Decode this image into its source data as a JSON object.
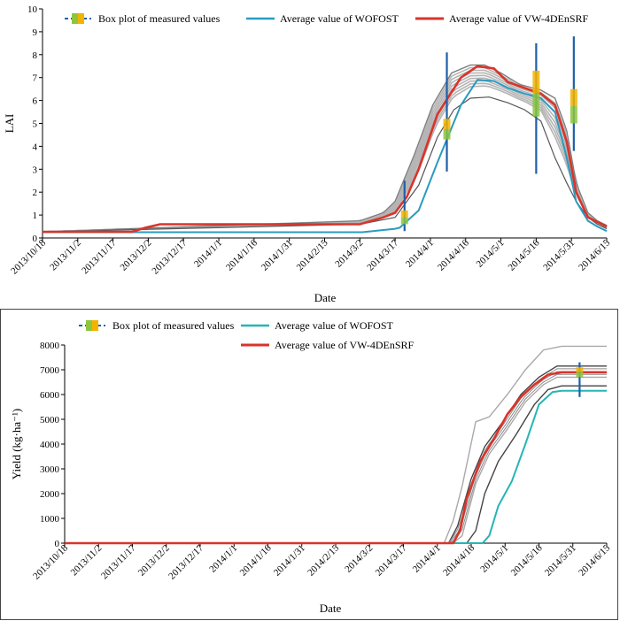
{
  "chart_data": [
    {
      "type": "line",
      "title": "",
      "xlabel": "Date",
      "ylabel": "LAI",
      "ylim": [
        0,
        10
      ],
      "yticks": [
        0,
        1,
        2,
        3,
        4,
        5,
        6,
        7,
        8,
        9,
        10
      ],
      "categories": [
        "2013/10/18",
        "2013/11/2",
        "2013/11/17",
        "2013/12/2",
        "2013/12/17",
        "2014/1/1",
        "2014/1/16",
        "2014/1/31",
        "2014/2/15",
        "2014/3/2",
        "2014/3/17",
        "2014/4/1",
        "2014/4/16",
        "2014/5/1",
        "2014/5/16",
        "2014/5/31",
        "2014/6/15"
      ],
      "legend": [
        "Box plot of measured values",
        "Average value of WOFOST",
        "Average value of VW-4DEnSRF"
      ],
      "colors": {
        "wofost": "#2a9bbf",
        "vw": "#d9342b",
        "ensemble": "#b4b4b4",
        "ensembleDark": "#555555",
        "whisker": "#1f5fa8",
        "boxLow": "#8cc63f",
        "boxHigh": "#f2b400"
      },
      "series": [
        {
          "name": "Average value of WOFOST",
          "x": [
            0,
            30,
            60,
            90,
            136,
            150,
            152,
            160,
            168,
            178,
            185,
            192,
            198,
            205,
            212,
            218,
            223,
            227,
            232,
            236,
            240
          ],
          "y": [
            0.25,
            0.25,
            0.25,
            0.25,
            0.25,
            0.4,
            0.45,
            1.2,
            3.3,
            5.8,
            6.9,
            6.85,
            6.55,
            6.3,
            6.1,
            5.5,
            3.5,
            1.6,
            0.75,
            0.5,
            0.3
          ]
        },
        {
          "name": "Average value of VW-4DEnSRF",
          "x": [
            0,
            30,
            38,
            44,
            50,
            60,
            90,
            120,
            135,
            145,
            150,
            155,
            160,
            168,
            178,
            185,
            192,
            198,
            205,
            212,
            218,
            223,
            227,
            232,
            236,
            240
          ],
          "y": [
            0.27,
            0.27,
            0.27,
            0.45,
            0.6,
            0.6,
            0.6,
            0.6,
            0.6,
            0.9,
            1.1,
            1.8,
            3.0,
            5.4,
            7.0,
            7.5,
            7.4,
            6.8,
            6.55,
            6.3,
            5.8,
            4.2,
            2.0,
            0.9,
            0.7,
            0.5
          ]
        },
        {
          "name": "ensemble-low",
          "x": [
            0,
            135,
            150,
            160,
            168,
            175,
            182,
            190,
            198,
            205,
            212,
            218,
            223,
            227,
            232,
            236,
            240
          ],
          "y": [
            0.27,
            0.6,
            0.9,
            2.3,
            4.4,
            5.6,
            6.1,
            6.15,
            5.9,
            5.6,
            5.1,
            3.5,
            2.4,
            1.6,
            0.9,
            0.6,
            0.4
          ]
        },
        {
          "name": "ensemble-high",
          "x": [
            0,
            135,
            145,
            150,
            158,
            166,
            174,
            182,
            188,
            195,
            203,
            212,
            218,
            223,
            227,
            232,
            236,
            240
          ],
          "y": [
            0.27,
            0.75,
            1.1,
            1.6,
            3.6,
            5.8,
            7.2,
            7.55,
            7.55,
            7.2,
            6.7,
            6.45,
            6.1,
            4.7,
            2.4,
            1.1,
            0.75,
            0.55
          ]
        }
      ],
      "boxes": [
        {
          "x": 154,
          "min": 0.3,
          "max": 2.5,
          "q1": 0.6,
          "q3": 1.2
        },
        {
          "x": 172,
          "min": 2.9,
          "max": 8.1,
          "q1": 4.3,
          "q3": 5.2
        },
        {
          "x": 210,
          "min": 2.8,
          "max": 8.5,
          "q1": 5.3,
          "q3": 7.3
        },
        {
          "x": 226,
          "min": 3.8,
          "max": 8.8,
          "q1": 5.0,
          "q3": 6.5
        }
      ]
    },
    {
      "type": "line",
      "title": "",
      "xlabel": "Date",
      "ylabel": "Yield (kg·ha⁻¹)",
      "ylim": [
        0,
        8000
      ],
      "yticks": [
        0,
        1000,
        2000,
        3000,
        4000,
        5000,
        6000,
        7000,
        8000
      ],
      "categories": [
        "2013/10/18",
        "2013/11/2",
        "2013/11/17",
        "2013/12/2",
        "2013/12/17",
        "2014/1/1",
        "2014/1/16",
        "2014/1/31",
        "2014/2/15",
        "2014/3/2",
        "2014/3/17",
        "2014/4/1",
        "2014/4/16",
        "2014/5/1",
        "2014/5/16",
        "2014/5/31",
        "2014/6/15"
      ],
      "legend": [
        "Box plot of measured values",
        "Average value of WOFOST",
        "Average value of VW-4DEnSRF"
      ],
      "colors": {
        "wofost": "#26b5b5",
        "vw": "#d9342b",
        "ensemble": "#a9a9a9",
        "ensembleDark": "#444444",
        "whisker": "#1f5fa8",
        "boxLow": "#8cc63f",
        "boxHigh": "#f2b400"
      },
      "series": [
        {
          "name": "Average value of WOFOST",
          "x": [
            0,
            185,
            188,
            192,
            198,
            204,
            210,
            216,
            220,
            240
          ],
          "y": [
            0,
            0,
            300,
            1500,
            2500,
            4000,
            5600,
            6100,
            6150,
            6150
          ]
        },
        {
          "name": "Average value of VW-4DEnSRF",
          "x": [
            0,
            172,
            175,
            178,
            184,
            190,
            196,
            202,
            208,
            214,
            220,
            240
          ],
          "y": [
            0,
            0,
            500,
            1800,
            3300,
            4200,
            5200,
            5900,
            6400,
            6800,
            6900,
            6900
          ]
        },
        {
          "name": "ensemble-a",
          "x": [
            0,
            168,
            172,
            176,
            182,
            188,
            196,
            204,
            212,
            220,
            240
          ],
          "y": [
            0,
            0,
            900,
            2300,
            4900,
            5100,
            6000,
            7000,
            7800,
            7950,
            7950
          ]
        },
        {
          "name": "ensemble-b",
          "x": [
            0,
            170,
            174,
            180,
            186,
            194,
            202,
            210,
            218,
            240
          ],
          "y": [
            0,
            0,
            700,
            2600,
            3900,
            4900,
            6000,
            6700,
            7150,
            7150
          ]
        },
        {
          "name": "ensemble-c",
          "x": [
            0,
            172,
            176,
            182,
            188,
            196,
            204,
            212,
            218,
            240
          ],
          "y": [
            0,
            0,
            300,
            2400,
            3600,
            4600,
            5700,
            6400,
            6700,
            6700
          ]
        },
        {
          "name": "ensemble-d",
          "x": [
            0,
            178,
            182,
            186,
            192,
            200,
            208,
            214,
            220,
            240
          ],
          "y": [
            0,
            0,
            500,
            2000,
            3300,
            4400,
            5600,
            6200,
            6350,
            6350
          ]
        }
      ],
      "boxes": [
        {
          "x": 228,
          "min": 5900,
          "max": 7300,
          "q1": 6700,
          "q3": 7100
        }
      ]
    }
  ]
}
